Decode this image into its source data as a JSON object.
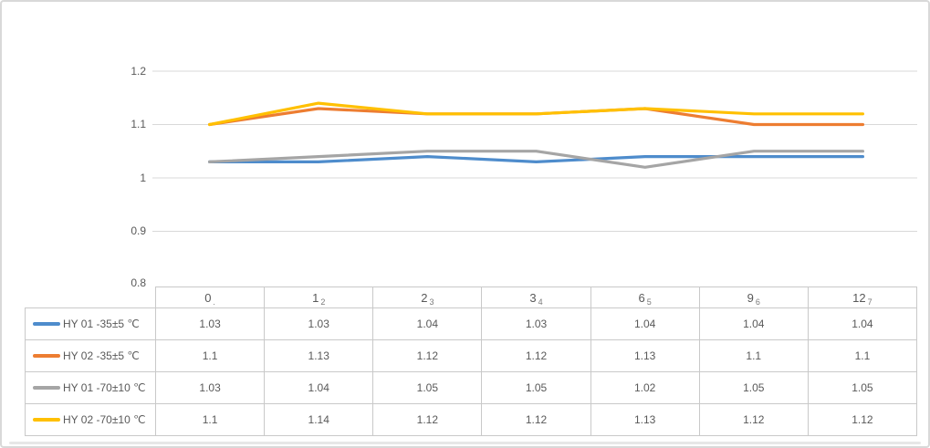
{
  "chart_data": {
    "type": "line",
    "categories": [
      "0",
      "1",
      "2",
      "3",
      "6",
      "9",
      "12"
    ],
    "category_subscripts": [
      ".",
      "2",
      "3",
      "4",
      "5",
      "6",
      "7"
    ],
    "series": [
      {
        "name": "HY 01 -35±5 ℃",
        "color": "#4E8CCC",
        "values": [
          1.03,
          1.03,
          1.04,
          1.03,
          1.04,
          1.04,
          1.04
        ]
      },
      {
        "name": "HY 02 -35±5 ℃",
        "color": "#ED7D31",
        "values": [
          1.1,
          1.13,
          1.12,
          1.12,
          1.13,
          1.1,
          1.1
        ]
      },
      {
        "name": "HY 01 -70±10 ℃",
        "color": "#A5A5A5",
        "values": [
          1.03,
          1.04,
          1.05,
          1.05,
          1.02,
          1.05,
          1.05
        ]
      },
      {
        "name": "HY 02 -70±10 ℃",
        "color": "#FFC001",
        "values": [
          1.1,
          1.14,
          1.12,
          1.12,
          1.13,
          1.12,
          1.12
        ]
      }
    ],
    "title": "",
    "xlabel": "",
    "ylabel": "",
    "ylim": [
      0.8,
      1.2
    ],
    "y_ticks": [
      "1.2",
      "1.1",
      "1",
      "0.9",
      "0.8"
    ],
    "grid": true,
    "legend_position": "data-table-left-column",
    "gridline_color": "#d9d9d9"
  },
  "table": {
    "columns": [
      {
        "main": "0",
        "sub": "."
      },
      {
        "main": "1",
        "sub": "2"
      },
      {
        "main": "2",
        "sub": "3"
      },
      {
        "main": "3",
        "sub": "4"
      },
      {
        "main": "6",
        "sub": "5"
      },
      {
        "main": "9",
        "sub": "6"
      },
      {
        "main": "12",
        "sub": "7"
      }
    ],
    "rows": [
      {
        "label": "HY 01 -35±5 ℃",
        "swatch": "#4E8CCC",
        "values": [
          "1.03",
          "1.03",
          "1.04",
          "1.03",
          "1.04",
          "1.04",
          "1.04"
        ]
      },
      {
        "label": "HY 02 -35±5 ℃",
        "swatch": "#ED7D31",
        "values": [
          "1.1",
          "1.13",
          "1.12",
          "1.12",
          "1.13",
          "1.1",
          "1.1"
        ]
      },
      {
        "label": "HY 01 -70±10 ℃",
        "swatch": "#A5A5A5",
        "values": [
          "1.03",
          "1.04",
          "1.05",
          "1.05",
          "1.02",
          "1.05",
          "1.05"
        ]
      },
      {
        "label": "HY 02 -70±10 ℃",
        "swatch": "#FFC001",
        "values": [
          "1.1",
          "1.14",
          "1.12",
          "1.12",
          "1.13",
          "1.12",
          "1.12"
        ]
      }
    ]
  }
}
